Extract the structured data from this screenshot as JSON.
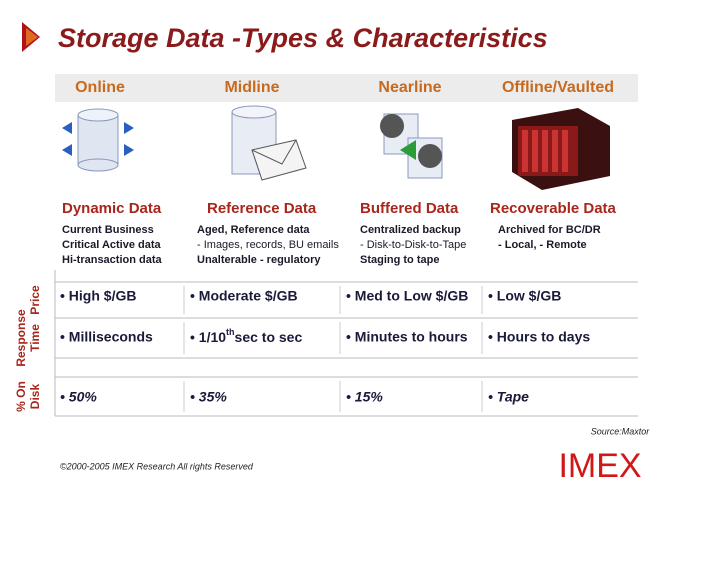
{
  "header": {
    "title": "Storage Data -Types & Characteristics"
  },
  "columns": [
    {
      "name": "Online",
      "data_type": "Dynamic Data",
      "description": [
        "Current Business",
        "Critical Active data",
        "Hi-transaction data"
      ]
    },
    {
      "name": "Midline",
      "data_type": "Reference Data",
      "description": [
        "Aged, Reference data",
        "- Images, records, BU emails",
        "Unalterable - regulatory"
      ]
    },
    {
      "name": "Nearline",
      "data_type": "Buffered Data",
      "description": [
        "Centralized backup",
        "- Disk-to-Disk-to-Tape",
        "Staging to tape"
      ]
    },
    {
      "name": "Offline/Vaulted",
      "data_type": "Recoverable Data",
      "description": [
        "Archived for BC/DR",
        "- Local, - Remote"
      ]
    }
  ],
  "rows": [
    {
      "label": [
        "Price"
      ],
      "cells": [
        "• High $/GB",
        "• Moderate $/GB",
        "• Med to Low $/GB",
        "• Low $/GB"
      ]
    },
    {
      "label": [
        "Response",
        "Time"
      ],
      "cells": [
        "• Milliseconds",
        {
          "text": "• 1/10",
          "sup": "th",
          "after": "sec to sec"
        },
        "• Minutes to hours",
        "• Hours to days"
      ]
    },
    {
      "label": [
        "% On",
        "Disk"
      ],
      "cells": [
        "• 50%",
        "• 35%",
        "• 15%",
        "• Tape"
      ]
    }
  ],
  "footer": {
    "source": "Source:Maxtor",
    "copyright": "©2000-2005  IMEX Research All rights Reserved",
    "logo": "IMEX"
  }
}
